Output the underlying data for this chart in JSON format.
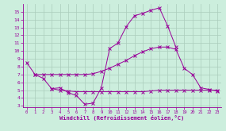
{
  "xlabel": "Windchill (Refroidissement éolien,°C)",
  "bg_color": "#cceedd",
  "grid_color": "#aaccbb",
  "line_color": "#990099",
  "xlim": [
    -0.5,
    23.5
  ],
  "ylim": [
    2.8,
    16.0
  ],
  "yticks": [
    3,
    4,
    5,
    6,
    7,
    8,
    9,
    10,
    11,
    12,
    13,
    14,
    15
  ],
  "xticks": [
    0,
    1,
    2,
    3,
    4,
    5,
    6,
    7,
    8,
    9,
    10,
    11,
    12,
    13,
    14,
    15,
    16,
    17,
    18,
    19,
    20,
    21,
    22,
    23
  ],
  "line1_y": [
    8.5,
    7.0,
    6.5,
    5.2,
    5.3,
    4.7,
    4.3,
    3.2,
    3.35,
    5.3,
    10.3,
    11.0,
    13.1,
    14.5,
    14.8,
    15.2,
    15.5,
    13.2,
    10.5,
    null,
    null,
    null,
    null,
    null
  ],
  "line2_y": [
    null,
    7.0,
    7.0,
    7.0,
    7.0,
    7.0,
    7.0,
    7.0,
    7.1,
    7.4,
    7.8,
    8.3,
    8.8,
    9.4,
    9.9,
    10.3,
    10.5,
    10.5,
    10.2,
    7.8,
    7.0,
    5.3,
    5.1,
    4.9
  ],
  "line3_y": [
    null,
    null,
    null,
    5.2,
    5.0,
    4.9,
    4.8,
    4.8,
    4.8,
    4.8,
    4.8,
    4.8,
    4.8,
    4.8,
    4.8,
    4.9,
    5.0,
    5.0,
    5.0,
    5.0,
    5.0,
    5.0,
    5.0,
    5.0
  ]
}
